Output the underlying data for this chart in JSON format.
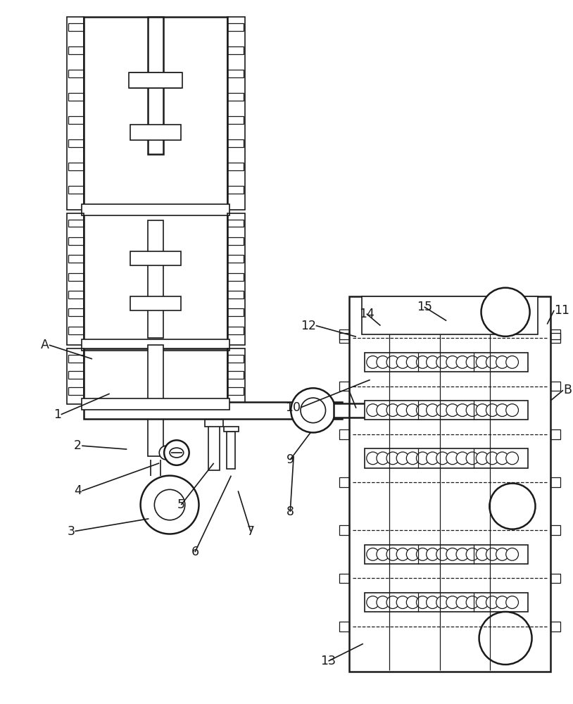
{
  "bg_color": "#ffffff",
  "line_color": "#1a1a1a",
  "figsize": [
    8.14,
    10.0
  ],
  "dpi": 100
}
